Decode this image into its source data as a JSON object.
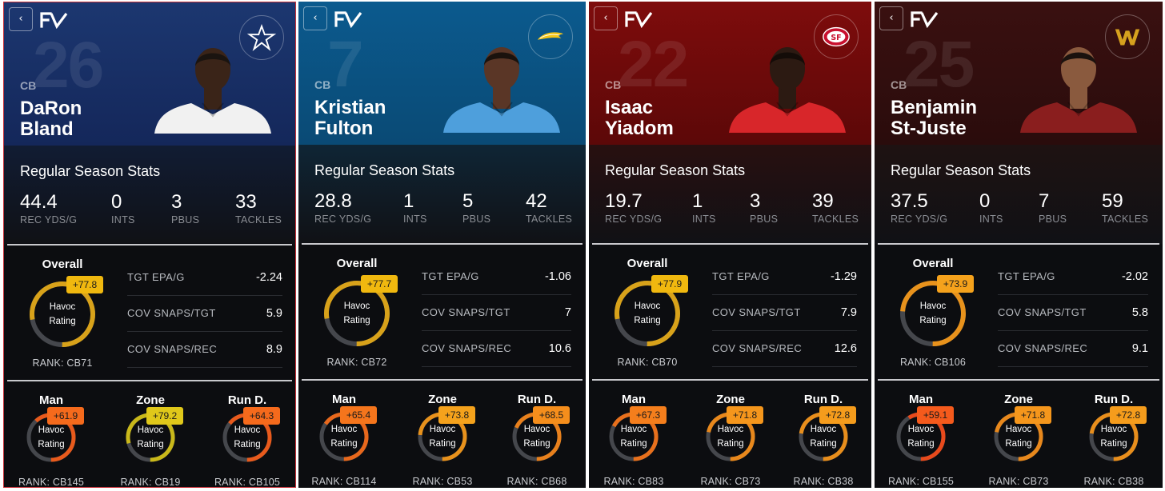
{
  "ui": {
    "back_glyph": "‹",
    "regular_season_title": "Regular Season Stats",
    "overall_label": "Overall",
    "gauge_text": [
      "Havoc",
      "Rating"
    ],
    "rank_prefix": "RANK:",
    "stat_labels": [
      "REC YDS/G",
      "INTS",
      "PBUS",
      "TACKLES"
    ],
    "metric_labels": [
      "TGT EPA/G",
      "COV SNAPS/TGT",
      "COV SNAPS/REC"
    ],
    "sub_labels": [
      "Man",
      "Zone",
      "Run D."
    ],
    "icons": {
      "back": "chevron-left-icon",
      "brand": "pff-logo-icon"
    }
  },
  "cards": [
    {
      "team_icon": "cowboys-star-icon",
      "jersey_color": "white",
      "colors": {
        "hero_top": "#1c3770",
        "hero_bottom": "#14275a",
        "panel": "#111c33",
        "hair": "#1a1410",
        "skin": "#3a2418",
        "shirt": "#f1f1f1"
      },
      "position": "CB",
      "number": "26",
      "first_name": "DaRon",
      "last_name": "Bland",
      "stats": [
        "44.4",
        "0",
        "3",
        "33"
      ],
      "overall": {
        "badge": "+77.8",
        "fill": 0.778,
        "color": "#d8a21a",
        "badge_color": "#f0b80f",
        "rank": "CB71"
      },
      "metrics": [
        "-2.24",
        "5.9",
        "8.9"
      ],
      "subs": [
        {
          "badge": "+61.9",
          "fill": 0.619,
          "color": "#e85a1c",
          "badge_color": "#f56a1c",
          "rank": "CB145"
        },
        {
          "badge": "+79.2",
          "fill": 0.792,
          "color": "#c9b81a",
          "badge_color": "#e0c81a",
          "rank": "CB19"
        },
        {
          "badge": "+64.3",
          "fill": 0.643,
          "color": "#e85a1c",
          "badge_color": "#f56a1c",
          "rank": "CB105"
        }
      ]
    },
    {
      "team_icon": "chargers-bolt-icon",
      "jersey_color": "powder-blue",
      "colors": {
        "hero_top": "#0b5a8e",
        "hero_bottom": "#0a4a75",
        "panel": "#0f2535",
        "hair": "#1a120d",
        "skin": "#5a3626",
        "shirt": "#4e9fdc"
      },
      "position": "CB",
      "number": "7",
      "first_name": "Kristian",
      "last_name": "Fulton",
      "stats": [
        "28.8",
        "1",
        "5",
        "42"
      ],
      "overall": {
        "badge": "+77.7",
        "fill": 0.777,
        "color": "#d8a21a",
        "badge_color": "#f0b80f",
        "rank": "CB72"
      },
      "metrics": [
        "-1.06",
        "7",
        "10.6"
      ],
      "subs": [
        {
          "badge": "+65.4",
          "fill": 0.654,
          "color": "#e8681c",
          "badge_color": "#f5751c",
          "rank": "CB114"
        },
        {
          "badge": "+73.8",
          "fill": 0.738,
          "color": "#e8921c",
          "badge_color": "#f5a21c",
          "rank": "CB53"
        },
        {
          "badge": "+68.5",
          "fill": 0.685,
          "color": "#e8801c",
          "badge_color": "#f58e1c",
          "rank": "CB68"
        }
      ]
    },
    {
      "team_icon": "49ers-sf-icon",
      "jersey_color": "red",
      "colors": {
        "hero_top": "#7e0c0c",
        "hero_bottom": "#5c0808",
        "panel": "#281010",
        "hair": "#140c08",
        "skin": "#2c1a12",
        "shirt": "#d8262a"
      },
      "position": "CB",
      "number": "22",
      "first_name": "Isaac",
      "last_name": "Yiadom",
      "stats": [
        "19.7",
        "1",
        "3",
        "39"
      ],
      "overall": {
        "badge": "+77.9",
        "fill": 0.779,
        "color": "#d8a21a",
        "badge_color": "#f0b80f",
        "rank": "CB70"
      },
      "metrics": [
        "-1.29",
        "7.9",
        "12.6"
      ],
      "subs": [
        {
          "badge": "+67.3",
          "fill": 0.673,
          "color": "#e8701c",
          "badge_color": "#f57e1c",
          "rank": "CB83"
        },
        {
          "badge": "+71.8",
          "fill": 0.718,
          "color": "#e8881c",
          "badge_color": "#f5961c",
          "rank": "CB73"
        },
        {
          "badge": "+72.8",
          "fill": 0.728,
          "color": "#e88e1c",
          "badge_color": "#f59c1c",
          "rank": "CB38"
        }
      ]
    },
    {
      "team_icon": "commanders-w-icon",
      "jersey_color": "burgundy",
      "colors": {
        "hero_top": "#3a1010",
        "hero_bottom": "#2a0c0c",
        "panel": "#1e1212",
        "hair": "#1a120e",
        "skin": "#8a5a3e",
        "shirt": "#8a1e1e"
      },
      "position": "CB",
      "number": "25",
      "first_name": "Benjamin",
      "last_name": "St-Juste",
      "stats": [
        "37.5",
        "0",
        "7",
        "59"
      ],
      "overall": {
        "badge": "+73.9",
        "fill": 0.739,
        "color": "#e8921c",
        "badge_color": "#f5a21c",
        "rank": "CB106"
      },
      "metrics": [
        "-2.02",
        "5.8",
        "9.1"
      ],
      "subs": [
        {
          "badge": "+59.1",
          "fill": 0.591,
          "color": "#e84a1c",
          "badge_color": "#f55a1c",
          "rank": "CB155"
        },
        {
          "badge": "+71.8",
          "fill": 0.718,
          "color": "#e8881c",
          "badge_color": "#f5961c",
          "rank": "CB73"
        },
        {
          "badge": "+72.8",
          "fill": 0.728,
          "color": "#e88e1c",
          "badge_color": "#f59c1c",
          "rank": "CB38"
        }
      ]
    }
  ]
}
